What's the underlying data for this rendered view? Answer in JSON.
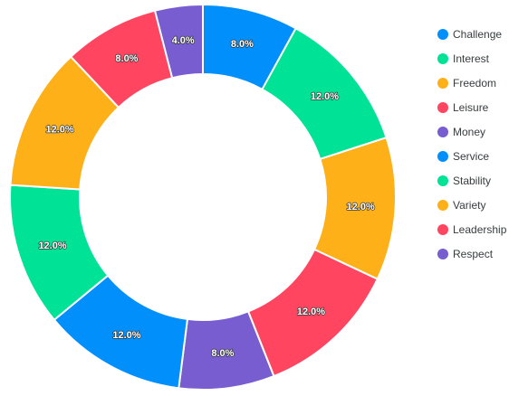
{
  "chart_data": {
    "type": "pie",
    "donut": true,
    "categories": [
      "Challenge",
      "Interest",
      "Freedom",
      "Leisure",
      "Money",
      "Service",
      "Stability",
      "Variety",
      "Leadership",
      "Respect"
    ],
    "legend_order": [
      "Challenge",
      "Interest",
      "Freedom",
      "Leisure",
      "Money",
      "Service",
      "Stability",
      "Variety",
      "Leadership",
      "Respect"
    ],
    "legend_colors": [
      "#008ffb",
      "#00e396",
      "#feb019",
      "#ff4560",
      "#775dd0",
      "#008ffb",
      "#00e396",
      "#feb019",
      "#ff4560",
      "#775dd0"
    ],
    "slices": [
      {
        "category": "Service",
        "value": 8,
        "label": "8.0%",
        "color": "#008ffb"
      },
      {
        "category": "Stability",
        "value": 12,
        "label": "12.0%",
        "color": "#00e396"
      },
      {
        "category": "Variety",
        "value": 12,
        "label": "12.0%",
        "color": "#feb019"
      },
      {
        "category": "Leadership",
        "value": 12,
        "label": "12.0%",
        "color": "#ff4560"
      },
      {
        "category": "Respect",
        "value": 8,
        "label": "8.0%",
        "color": "#775dd0"
      },
      {
        "category": "Challenge",
        "value": 12,
        "label": "12.0%",
        "color": "#008ffb"
      },
      {
        "category": "Interest",
        "value": 12,
        "label": "12.0%",
        "color": "#00e396"
      },
      {
        "category": "Freedom",
        "value": 12,
        "label": "12.0%",
        "color": "#feb019"
      },
      {
        "category": "Leisure",
        "value": 8,
        "label": "8.0%",
        "color": "#ff4560"
      },
      {
        "category": "Money",
        "value": 4,
        "label": "4.0%",
        "color": "#775dd0"
      }
    ],
    "legend_position": "right"
  }
}
